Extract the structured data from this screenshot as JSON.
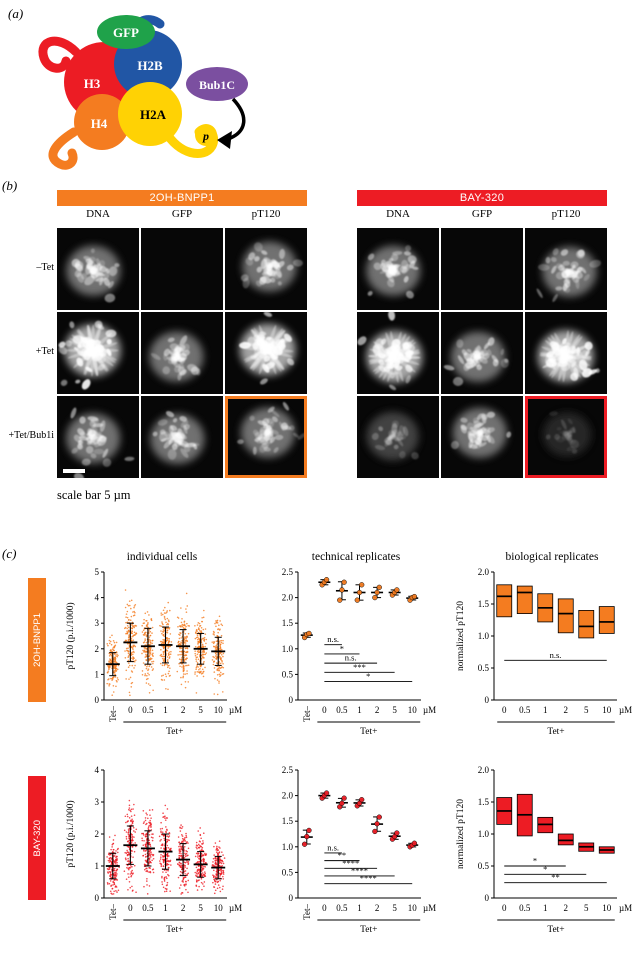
{
  "panel_tags": {
    "a": "(a)",
    "b": "(b)",
    "c": "(c)"
  },
  "panel_a": {
    "labels": {
      "gfp": "GFP",
      "h3": "H3",
      "h2b": "H2B",
      "bub1c": "Bub1C",
      "h4": "H4",
      "h2a": "H2A",
      "p": "p"
    },
    "colors": {
      "gfp": "#1fa24a",
      "h3": "#ec1c24",
      "h2b": "#2156a5",
      "bub1c": "#7b4fa0",
      "h4": "#f47c20",
      "h2a": "#ffd204"
    }
  },
  "panel_b": {
    "groups": [
      {
        "name": "2OH-BNPP1",
        "color": "#f47c20"
      },
      {
        "name": "BAY-320",
        "color": "#ed1c24"
      }
    ],
    "column_labels": [
      "DNA",
      "GFP",
      "pT120",
      "DNA",
      "GFP",
      "pT120"
    ],
    "row_labels": [
      "–Tet",
      "+Tet",
      "+Tet/Bub1i"
    ],
    "cells": [
      [
        "medium",
        "none",
        "medium",
        "medium",
        "none",
        "medium"
      ],
      [
        "bright",
        "medium",
        "bright",
        "bright",
        "medium",
        "bright"
      ],
      [
        "medium",
        "medium",
        "medium",
        "dim",
        "medium",
        "faint"
      ]
    ],
    "highlights": [
      {
        "row": 2,
        "col": 2,
        "color": "#f47c20"
      },
      {
        "row": 2,
        "col": 5,
        "color": "#ed1c24"
      }
    ],
    "scalebar_cell": {
      "row": 2,
      "col": 0
    },
    "scale_note": "scale bar 5 µm"
  },
  "panel_c": {
    "row_groups": [
      {
        "label": "2OH-BNPP1",
        "color": "#f47c20"
      },
      {
        "label": "BAY-320",
        "color": "#ed1c24"
      }
    ],
    "col_titles": [
      "individual cells",
      "technical replicates",
      "biological replicates"
    ]
  },
  "chart_data": [
    {
      "id": "bnpp1-individual-cells",
      "type": "jitter",
      "title": "individual cells",
      "ylabel": "pT120 (p.i./1000)",
      "ylim": [
        0,
        5
      ],
      "yticks": [
        0,
        1,
        2,
        3,
        4,
        5
      ],
      "ytick_labels": [
        "0",
        "1",
        "2",
        "3",
        "4",
        "5"
      ],
      "categories": [
        "Tet–",
        "0",
        "0.5",
        "1",
        "2",
        "5",
        "10"
      ],
      "unit": "µM",
      "group_label": "Tet+",
      "group_from": 1,
      "color": "#f47c20",
      "n_per_group": 170,
      "stats": [
        {
          "median": 1.4,
          "sd": 0.45
        },
        {
          "median": 2.25,
          "sd": 0.75
        },
        {
          "median": 2.1,
          "sd": 0.7
        },
        {
          "median": 2.15,
          "sd": 0.7
        },
        {
          "median": 2.1,
          "sd": 0.65
        },
        {
          "median": 2.0,
          "sd": 0.6
        },
        {
          "median": 1.9,
          "sd": 0.55
        }
      ],
      "annotations": []
    },
    {
      "id": "bnpp1-technical-replicates",
      "type": "dotplot",
      "title": "technical replicates",
      "ylabel": "",
      "ylim": [
        0,
        2.5
      ],
      "yticks": [
        0,
        0.5,
        1,
        1.5,
        2,
        2.5
      ],
      "ytick_labels": [
        "0",
        "0.5",
        "1.0",
        "1.5",
        "2.0",
        "2.5"
      ],
      "categories": [
        "Tet–",
        "0",
        "0.5",
        "1",
        "2",
        "5",
        "10"
      ],
      "unit": "µM",
      "group_label": "Tet+",
      "group_from": 1,
      "color": "#f47c20",
      "replicates": [
        [
          1.22,
          1.28,
          1.3
        ],
        [
          2.25,
          2.3,
          2.35
        ],
        [
          1.95,
          2.15,
          2.3
        ],
        [
          1.95,
          2.1,
          2.25
        ],
        [
          2.0,
          2.1,
          2.2
        ],
        [
          2.05,
          2.1,
          2.15
        ],
        [
          1.95,
          2.0,
          2.02
        ]
      ],
      "annotations": [
        {
          "label": "n.s.",
          "from": 1,
          "to": 2,
          "y": 1.08
        },
        {
          "label": "*",
          "from": 1,
          "to": 3,
          "y": 0.9
        },
        {
          "label": "n.s.",
          "from": 1,
          "to": 4,
          "y": 0.72
        },
        {
          "label": "***",
          "from": 1,
          "to": 5,
          "y": 0.54
        },
        {
          "label": "*",
          "from": 1,
          "to": 6,
          "y": 0.36
        }
      ]
    },
    {
      "id": "bnpp1-biological-replicates",
      "type": "box",
      "title": "biological replicates",
      "ylabel": "normalized pT120",
      "ylim": [
        0,
        2
      ],
      "yticks": [
        0,
        0.5,
        1,
        1.5,
        2
      ],
      "ytick_labels": [
        "0",
        "0.5",
        "1.0",
        "1.5",
        "2.0"
      ],
      "categories": [
        "0",
        "0.5",
        "1",
        "2",
        "5",
        "10"
      ],
      "unit": "µM",
      "group_label": "Tet+",
      "group_from": 0,
      "color": "#f47c20",
      "boxes": [
        {
          "lo": 1.3,
          "hi": 1.8,
          "med": 1.62
        },
        {
          "lo": 1.35,
          "hi": 1.78,
          "med": 1.68
        },
        {
          "lo": 1.22,
          "hi": 1.66,
          "med": 1.44
        },
        {
          "lo": 1.05,
          "hi": 1.58,
          "med": 1.35
        },
        {
          "lo": 0.97,
          "hi": 1.4,
          "med": 1.15
        },
        {
          "lo": 1.04,
          "hi": 1.46,
          "med": 1.22
        }
      ],
      "annotations": [
        {
          "label": "n.s.",
          "from": 0,
          "to": 5,
          "y": 0.62
        }
      ]
    },
    {
      "id": "bay320-individual-cells",
      "type": "jitter",
      "title": "",
      "ylabel": "pT120 (p.i./1000)",
      "ylim": [
        0,
        4
      ],
      "yticks": [
        0,
        1,
        2,
        3,
        4
      ],
      "ytick_labels": [
        "0",
        "1",
        "2",
        "3",
        "4"
      ],
      "categories": [
        "Tet–",
        "0",
        "0.5",
        "1",
        "2",
        "5",
        "10"
      ],
      "unit": "µM",
      "group_label": "Tet+",
      "group_from": 1,
      "color": "#ed1c24",
      "n_per_group": 170,
      "stats": [
        {
          "median": 1.0,
          "sd": 0.4
        },
        {
          "median": 1.65,
          "sd": 0.6
        },
        {
          "median": 1.55,
          "sd": 0.55
        },
        {
          "median": 1.45,
          "sd": 0.55
        },
        {
          "median": 1.2,
          "sd": 0.5
        },
        {
          "median": 1.05,
          "sd": 0.4
        },
        {
          "median": 0.95,
          "sd": 0.35
        }
      ],
      "annotations": []
    },
    {
      "id": "bay320-technical-replicates",
      "type": "dotplot",
      "title": "",
      "ylabel": "",
      "ylim": [
        0,
        2.5
      ],
      "yticks": [
        0,
        0.5,
        1,
        1.5,
        2,
        2.5
      ],
      "ytick_labels": [
        "0",
        "0.5",
        "1.0",
        "1.5",
        "2.0",
        "2.5"
      ],
      "categories": [
        "Tet–",
        "0",
        "0.5",
        "1",
        "2",
        "5",
        "10"
      ],
      "unit": "µM",
      "group_label": "Tet+",
      "group_from": 1,
      "color": "#ed1c24",
      "replicates": [
        [
          1.05,
          1.2,
          1.32
        ],
        [
          1.95,
          2.0,
          2.05
        ],
        [
          1.78,
          1.85,
          1.95
        ],
        [
          1.8,
          1.85,
          1.92
        ],
        [
          1.3,
          1.45,
          1.58
        ],
        [
          1.15,
          1.2,
          1.27
        ],
        [
          1.0,
          1.03,
          1.07
        ]
      ],
      "annotations": [
        {
          "label": "n.s.",
          "from": 1,
          "to": 2,
          "y": 0.88
        },
        {
          "label": "**",
          "from": 1,
          "to": 3,
          "y": 0.73
        },
        {
          "label": "****",
          "from": 1,
          "to": 4,
          "y": 0.58
        },
        {
          "label": "****",
          "from": 1,
          "to": 5,
          "y": 0.43
        },
        {
          "label": "****",
          "from": 1,
          "to": 6,
          "y": 0.28
        }
      ]
    },
    {
      "id": "bay320-biological-replicates",
      "type": "box",
      "title": "",
      "ylabel": "normalized pT120",
      "ylim": [
        0,
        2
      ],
      "yticks": [
        0,
        0.5,
        1,
        1.5,
        2
      ],
      "ytick_labels": [
        "0",
        "0.5",
        "1.0",
        "1.5",
        "2.0"
      ],
      "categories": [
        "0",
        "0.5",
        "1",
        "2",
        "5",
        "10"
      ],
      "unit": "µM",
      "group_label": "Tet+",
      "group_from": 0,
      "color": "#ed1c24",
      "boxes": [
        {
          "lo": 1.15,
          "hi": 1.57,
          "med": 1.36
        },
        {
          "lo": 0.97,
          "hi": 1.62,
          "med": 1.3
        },
        {
          "lo": 1.02,
          "hi": 1.26,
          "med": 1.15
        },
        {
          "lo": 0.83,
          "hi": 1.0,
          "med": 0.9
        },
        {
          "lo": 0.73,
          "hi": 0.86,
          "med": 0.8
        },
        {
          "lo": 0.7,
          "hi": 0.8,
          "med": 0.75
        }
      ],
      "annotations": [
        {
          "label": "*",
          "from": 0,
          "to": 3,
          "y": 0.5
        },
        {
          "label": "*",
          "from": 0,
          "to": 4,
          "y": 0.37
        },
        {
          "label": "**",
          "from": 0,
          "to": 5,
          "y": 0.24
        }
      ]
    }
  ]
}
